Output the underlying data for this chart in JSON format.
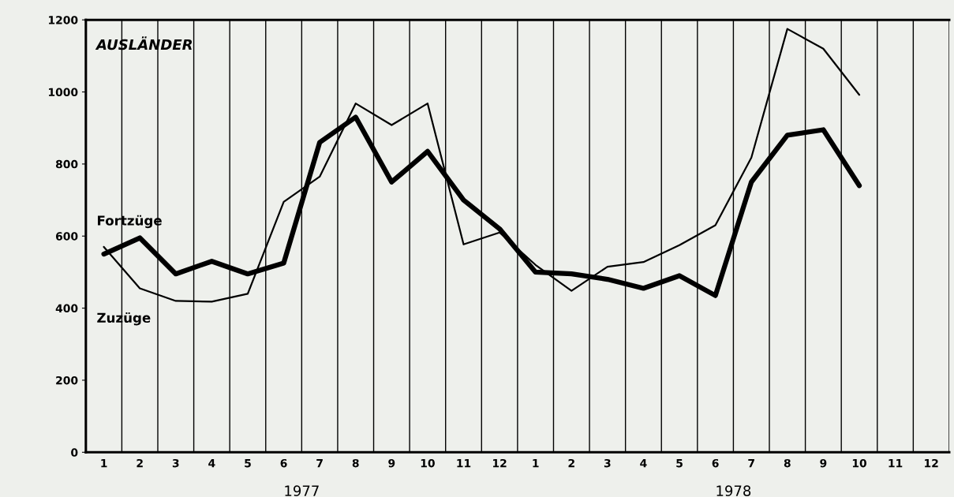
{
  "chart_data": {
    "type": "line",
    "title": "AUSLÄNDER",
    "categories": [
      "1",
      "2",
      "3",
      "4",
      "5",
      "6",
      "7",
      "8",
      "9",
      "10",
      "11",
      "12",
      "1",
      "2",
      "3",
      "4",
      "5",
      "6",
      "7",
      "8",
      "9",
      "10",
      "11",
      "12"
    ],
    "series": [
      {
        "name": "Fortzüge",
        "color": "#000000",
        "values": [
          550,
          595,
          495,
          530,
          495,
          525,
          860,
          930,
          750,
          835,
          700,
          620,
          500,
          495,
          480,
          455,
          490,
          435,
          750,
          880,
          895,
          740,
          null,
          null
        ]
      },
      {
        "name": "Zuzüge",
        "color": "#000000",
        "values": [
          570,
          455,
          420,
          418,
          440,
          695,
          765,
          968,
          908,
          968,
          577,
          610,
          520,
          448,
          515,
          528,
          575,
          630,
          818,
          1175,
          1120,
          992,
          null,
          null
        ]
      }
    ],
    "ylim": [
      0,
      1200
    ],
    "yticks": [
      0,
      200,
      400,
      600,
      800,
      1000,
      1200
    ],
    "grid": "x",
    "legend": false,
    "annotations": [
      "1977",
      "1978"
    ]
  }
}
